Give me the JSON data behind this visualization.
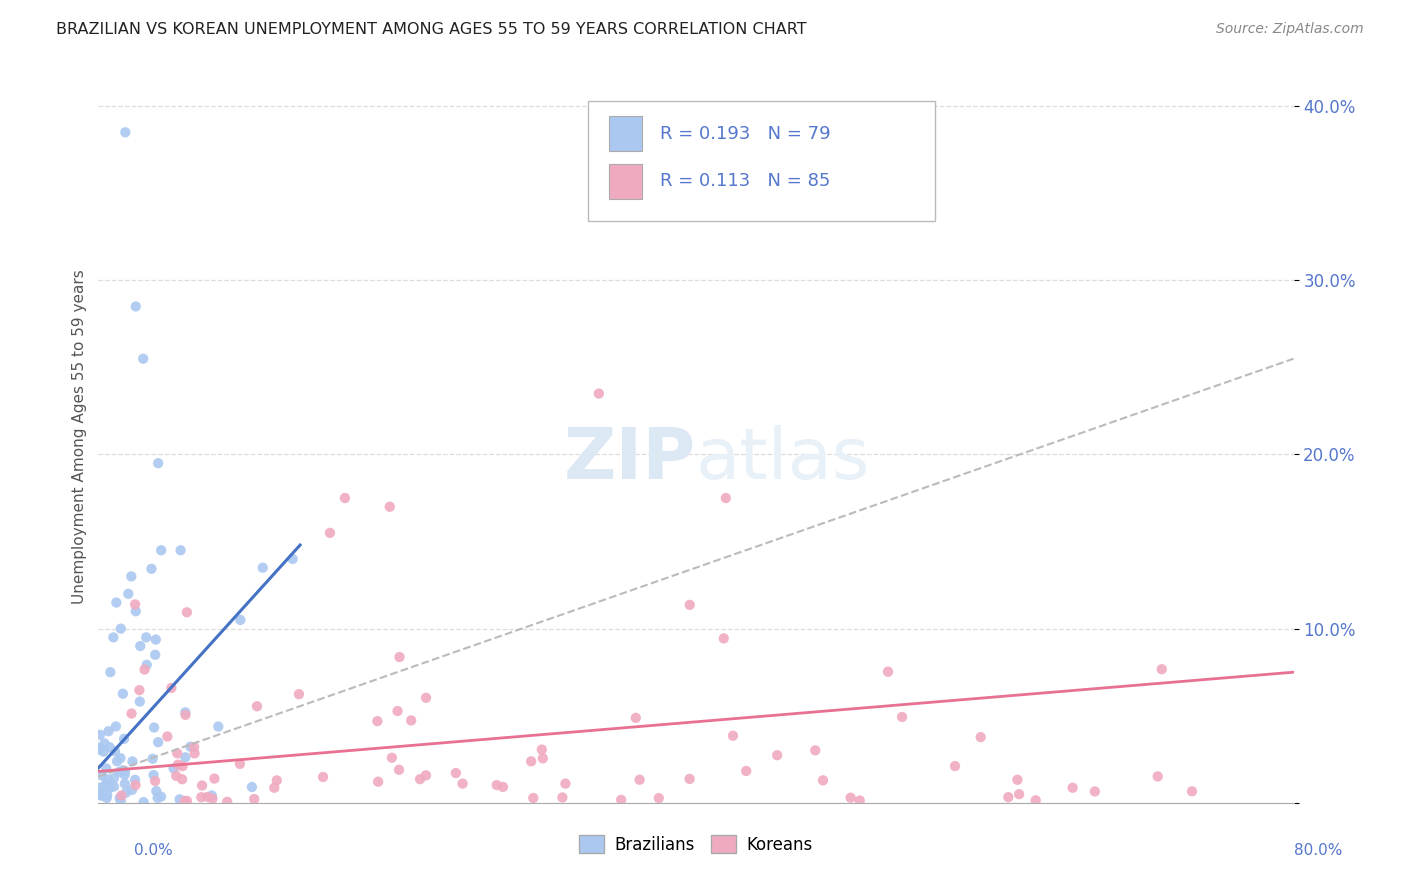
{
  "title": "BRAZILIAN VS KOREAN UNEMPLOYMENT AMONG AGES 55 TO 59 YEARS CORRELATION CHART",
  "source": "Source: ZipAtlas.com",
  "ylabel": "Unemployment Among Ages 55 to 59 years",
  "background_color": "#ffffff",
  "grid_color": "#dddddd",
  "brazil_scatter_color": "#aac8f0",
  "korea_scatter_color": "#f0aac0",
  "brazil_line_color": "#4472c4",
  "korea_line_color": "#e87090",
  "dashed_line_color": "#bbbbbb",
  "tick_label_color": "#5577cc",
  "ylabel_color": "#555555",
  "title_color": "#222222",
  "source_color": "#888888",
  "legend_R_brazil": "0.193",
  "legend_N_brazil": "79",
  "legend_R_korea": "0.113",
  "legend_N_korea": "85",
  "xlim": [
    0.0,
    0.8
  ],
  "ylim": [
    0.0,
    0.42
  ],
  "yticks": [
    0.0,
    0.1,
    0.2,
    0.3,
    0.4
  ],
  "ytick_labels": [
    "",
    "10.0%",
    "20.0%",
    "30.0%",
    "40.0%"
  ]
}
